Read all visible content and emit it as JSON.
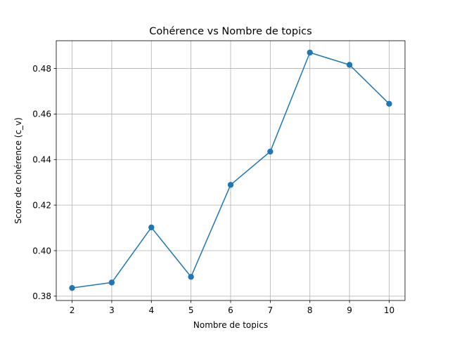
{
  "chart_data": {
    "type": "line",
    "title": "Cohérence vs Nombre de topics",
    "xlabel": "Nombre de topics",
    "ylabel": "Score de cohérence (c_v)",
    "x": [
      2,
      3,
      4,
      5,
      6,
      7,
      8,
      9,
      10
    ],
    "series": [
      {
        "values": [
          0.3836,
          0.386,
          0.4102,
          0.3885,
          0.4289,
          0.4435,
          0.487,
          0.4816,
          0.4645
        ],
        "color": "#1f77b4",
        "marker": "circle"
      }
    ],
    "xticks": [
      "2",
      "3",
      "4",
      "5",
      "6",
      "7",
      "8",
      "9",
      "10"
    ],
    "yticks": [
      "0.38",
      "0.40",
      "0.42",
      "0.44",
      "0.46",
      "0.48"
    ],
    "xlim": [
      1.6,
      10.4
    ],
    "ylim": [
      0.3781,
      0.4922
    ],
    "grid": true
  }
}
